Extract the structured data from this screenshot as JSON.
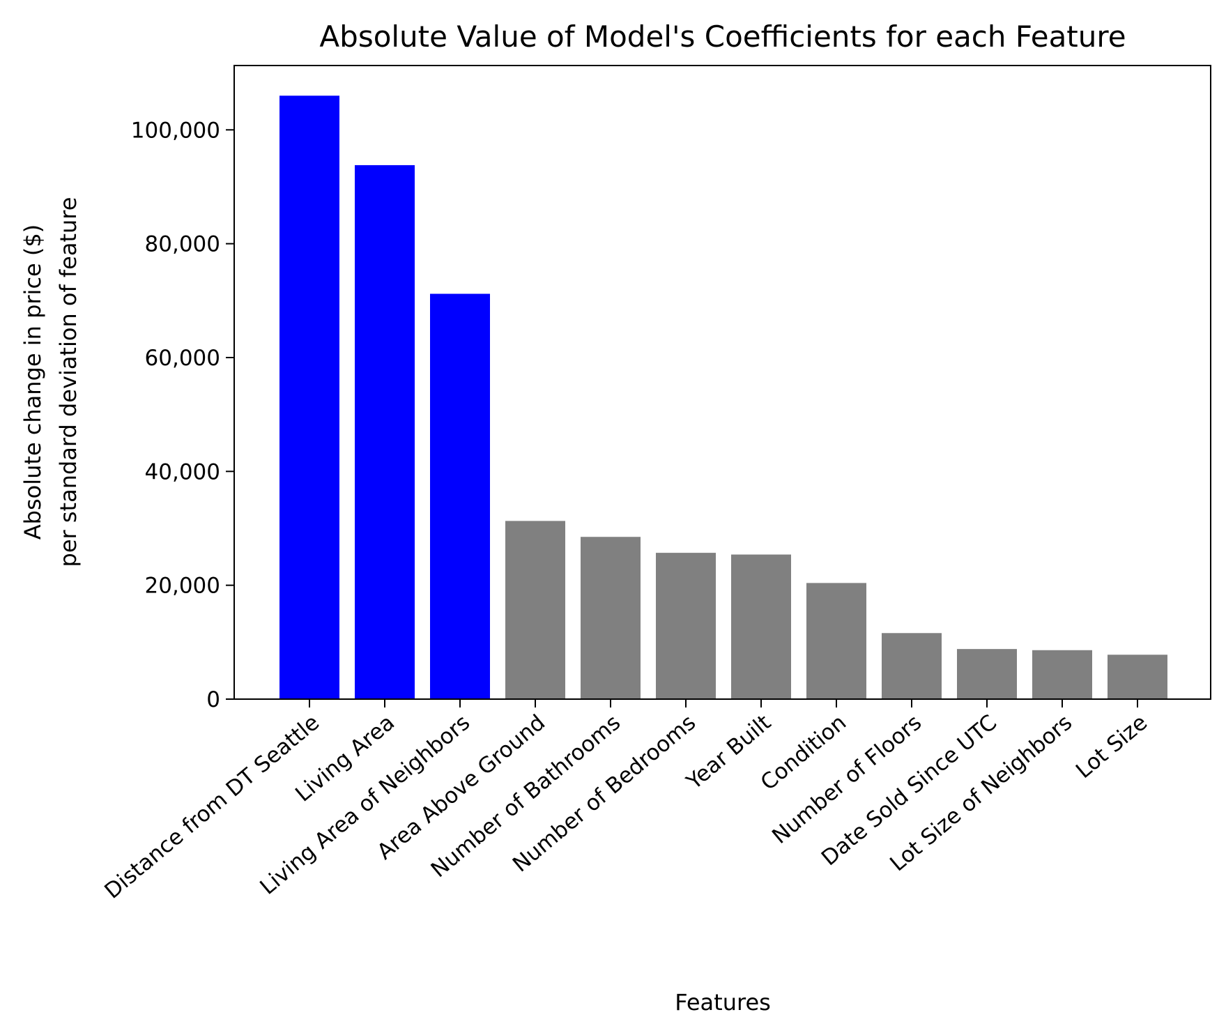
{
  "chart_data": {
    "type": "bar",
    "title": "Absolute Value of Model's Coefficients for each Feature",
    "xlabel": "Features",
    "ylabel_lines": [
      "Absolute change in price ($)",
      "per standard deviation of feature"
    ],
    "categories": [
      "Distance from DT Seattle",
      "Living Area",
      "Living Area of Neighbors",
      "Area Above Ground",
      "Number of Bathrooms",
      "Number of Bedrooms",
      "Year Built",
      "Condition",
      "Number of Floors",
      "Date Sold Since UTC",
      "Lot Size of Neighbors",
      "Lot Size"
    ],
    "values": [
      106000,
      93800,
      71200,
      31300,
      28500,
      25700,
      25400,
      20400,
      11600,
      8800,
      8600,
      7800
    ],
    "bar_colors": [
      "#0000ff",
      "#0000ff",
      "#0000ff",
      "#808080",
      "#808080",
      "#808080",
      "#808080",
      "#808080",
      "#808080",
      "#808080",
      "#808080",
      "#808080"
    ],
    "ylim": [
      0,
      111300
    ],
    "yticks": [
      0,
      20000,
      40000,
      60000,
      80000,
      100000
    ],
    "ytick_labels": [
      "0",
      "20,000",
      "40,000",
      "60,000",
      "80,000",
      "100,000"
    ],
    "grid": false,
    "legend": "none"
  }
}
